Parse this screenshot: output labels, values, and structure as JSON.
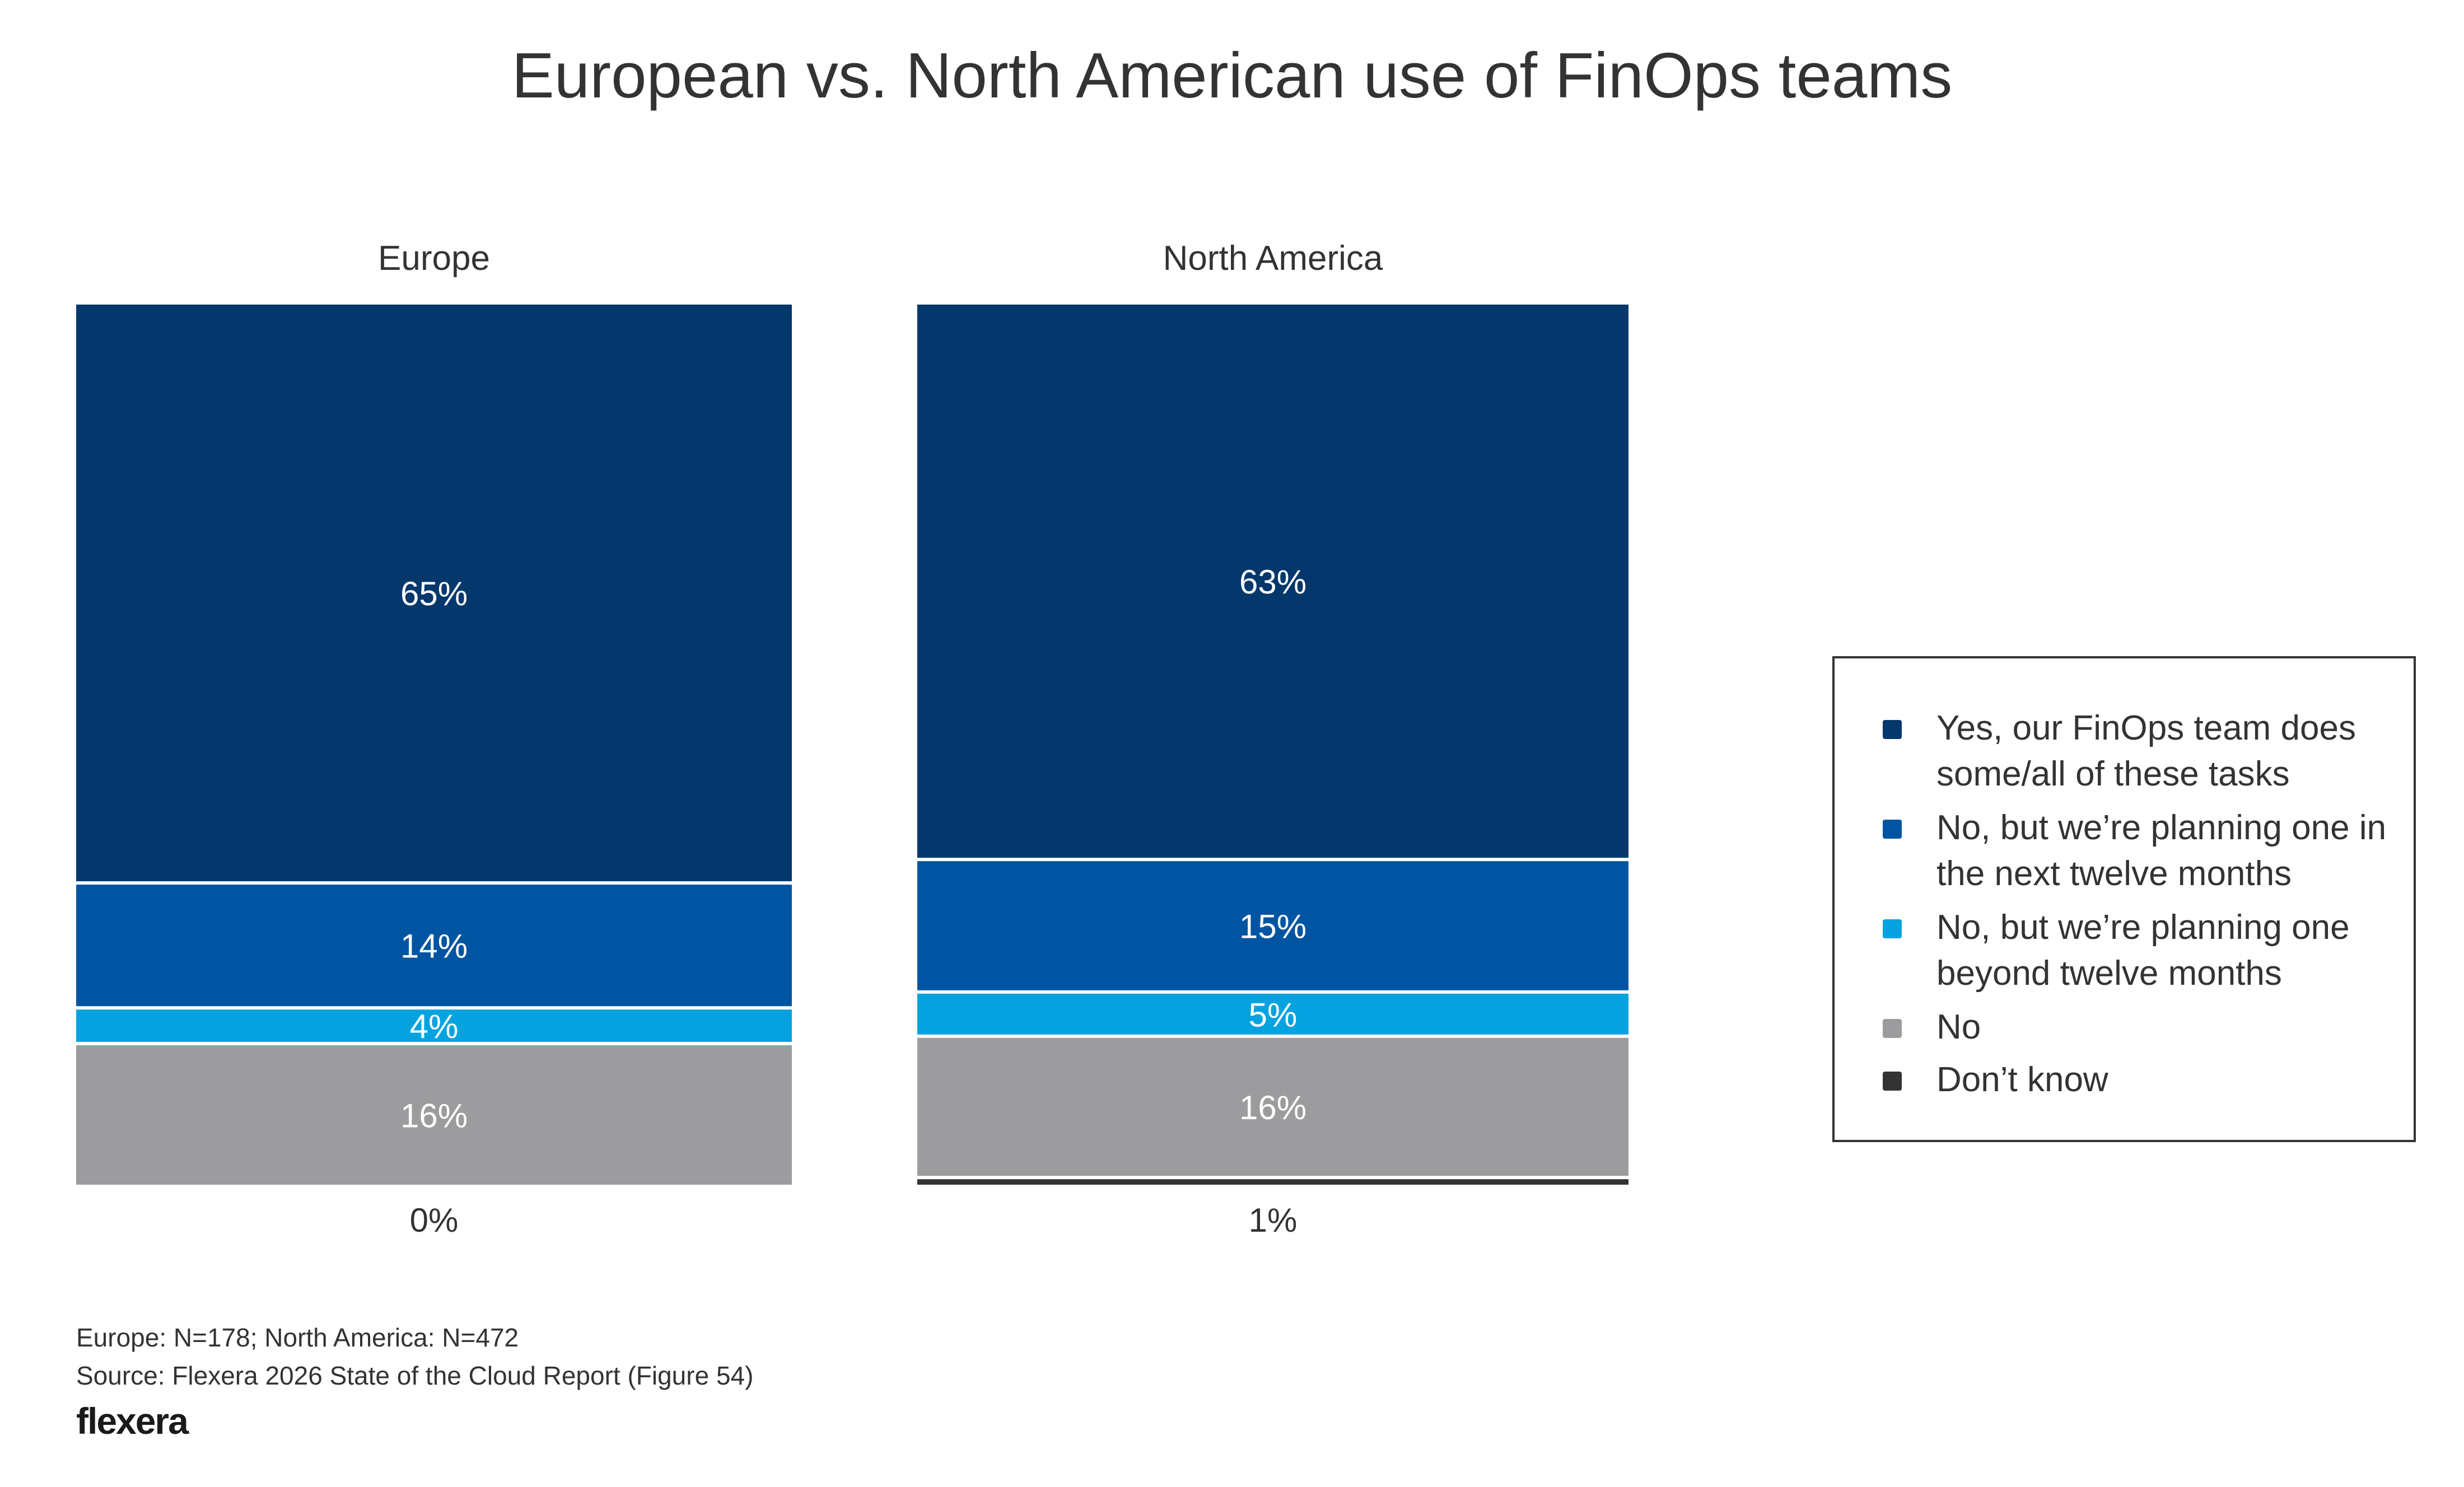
{
  "chart_data": {
    "type": "bar",
    "stacked": true,
    "normalized": true,
    "title": "European vs. North American use of FinOps teams",
    "categories": [
      "Europe",
      "North America"
    ],
    "series": [
      {
        "name": "Yes, our FinOps team does some/all of these tasks",
        "color": "#04376C",
        "values": [
          65,
          63
        ],
        "labels": [
          "65%",
          "63%"
        ]
      },
      {
        "name": "No, but we’re planning one in the next twelve months",
        "color": "#0055A2",
        "values": [
          14,
          15
        ],
        "labels": [
          "14%",
          "15%"
        ]
      },
      {
        "name": "No, but we’re planning one beyond twelve months",
        "color": "#04A3E0",
        "values": [
          4,
          5
        ],
        "labels": [
          "4%",
          "5%"
        ]
      },
      {
        "name": "No",
        "color": "#9C9C9E",
        "values": [
          16,
          16
        ],
        "labels": [
          "16%",
          "16%"
        ]
      },
      {
        "name": "Don’t know",
        "color": "#333333",
        "values": [
          0,
          1
        ],
        "labels": [
          "0%",
          "1%"
        ]
      }
    ],
    "ylim": [
      0,
      100
    ],
    "legend_position": "right",
    "grid": false
  },
  "footnotes": {
    "sample": "Europe: N=178; North America: N=472",
    "source": "Source: Flexera 2026 State of the Cloud Report (Figure 54)"
  },
  "logo": {
    "text": "flexera",
    "mark": "."
  }
}
